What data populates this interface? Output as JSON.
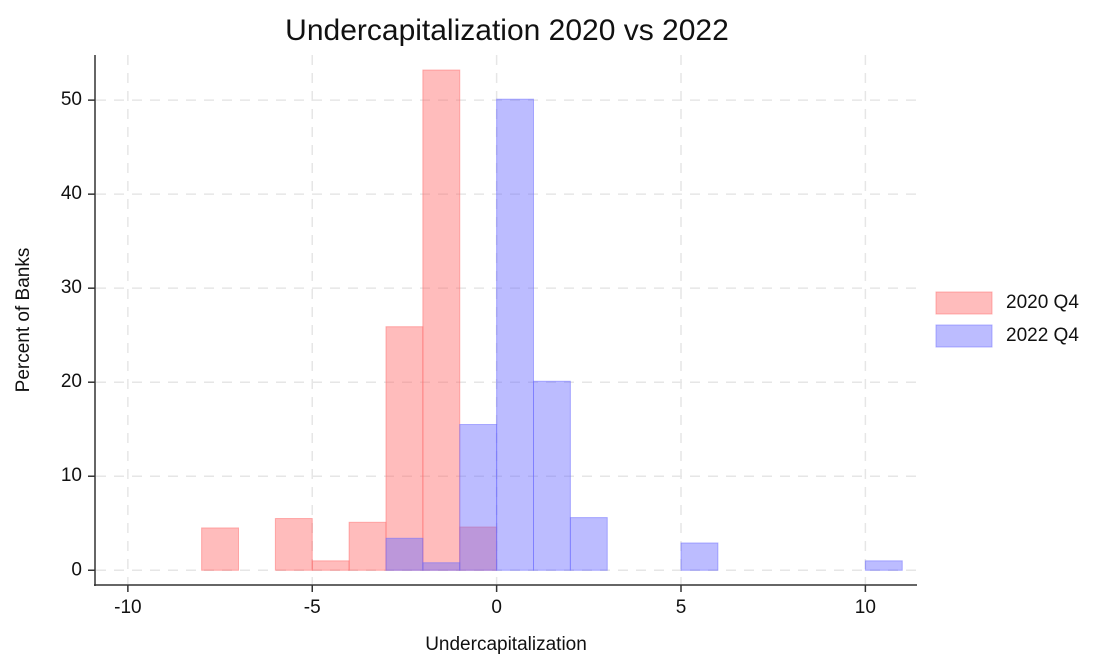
{
  "chart_data": {
    "type": "histogram",
    "title": "Undercapitalization 2020 vs 2022",
    "x_label": "Undercapitalization",
    "y_label": "Percent of Banks",
    "bins": [
      -8,
      -7,
      -6,
      -5,
      -4,
      -3,
      -2,
      -1,
      0,
      1,
      2,
      3,
      4,
      5,
      6,
      7,
      8,
      9,
      10,
      11
    ],
    "series": [
      {
        "name": "2020 Q4",
        "color": "#ff6b6b",
        "values": [
          4.5,
          0,
          5.5,
          1.0,
          5.1,
          25.9,
          53.2,
          4.6,
          0,
          0,
          0,
          0,
          0,
          0,
          0,
          0,
          0,
          0,
          0
        ]
      },
      {
        "name": "2022 Q4",
        "color": "#6b6bff",
        "values": [
          0,
          0,
          0,
          0,
          0,
          3.4,
          0.8,
          15.5,
          50.1,
          20.1,
          5.6,
          0,
          0,
          2.9,
          0,
          0,
          0,
          0,
          1.0
        ]
      }
    ],
    "xlim": [
      -11,
      11.4
    ],
    "ylim": [
      -2.1,
      54.8
    ],
    "xticks": [
      -10,
      -5,
      0,
      5,
      10
    ],
    "yticks": [
      0,
      10,
      20,
      30,
      40,
      50
    ],
    "grid": true,
    "legend": "right"
  }
}
